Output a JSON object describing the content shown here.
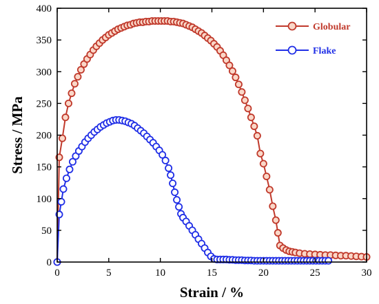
{
  "chart_data": {
    "type": "scatter",
    "title": "",
    "xlabel": "Strain / %",
    "ylabel": "Stress / MPa",
    "xlim": [
      0,
      30
    ],
    "ylim": [
      0,
      400
    ],
    "x_ticks": [
      "0",
      "5",
      "10",
      "15",
      "20",
      "25",
      "30"
    ],
    "y_ticks": [
      "0",
      "50",
      "100",
      "150",
      "200",
      "250",
      "300",
      "350",
      "400"
    ],
    "grid": false,
    "legend_position": "top-right",
    "series": [
      {
        "name": "Globular",
        "color": "#c0392b",
        "fill": "#fad7c8",
        "marker": "circle",
        "line": true,
        "points": [
          [
            0,
            0
          ],
          [
            0.2,
            165
          ],
          [
            0.5,
            195
          ],
          [
            0.8,
            228
          ],
          [
            1.1,
            250
          ],
          [
            1.4,
            266
          ],
          [
            1.7,
            281
          ],
          [
            2.0,
            292
          ],
          [
            2.3,
            303
          ],
          [
            2.6,
            312
          ],
          [
            2.9,
            320
          ],
          [
            3.2,
            327
          ],
          [
            3.5,
            334
          ],
          [
            3.8,
            340
          ],
          [
            4.1,
            345
          ],
          [
            4.4,
            350
          ],
          [
            4.7,
            354
          ],
          [
            5.0,
            358
          ],
          [
            5.3,
            361
          ],
          [
            5.6,
            364
          ],
          [
            5.9,
            367
          ],
          [
            6.2,
            369
          ],
          [
            6.5,
            371
          ],
          [
            6.8,
            373
          ],
          [
            7.1,
            374
          ],
          [
            7.4,
            376
          ],
          [
            7.7,
            377
          ],
          [
            8.0,
            378
          ],
          [
            8.3,
            378
          ],
          [
            8.6,
            379
          ],
          [
            8.9,
            379
          ],
          [
            9.2,
            380
          ],
          [
            9.5,
            380
          ],
          [
            9.8,
            380
          ],
          [
            10.1,
            380
          ],
          [
            10.4,
            380
          ],
          [
            10.7,
            380
          ],
          [
            11.0,
            379
          ],
          [
            11.3,
            379
          ],
          [
            11.6,
            378
          ],
          [
            11.9,
            377
          ],
          [
            12.2,
            376
          ],
          [
            12.5,
            374
          ],
          [
            12.8,
            372
          ],
          [
            13.1,
            370
          ],
          [
            13.4,
            367
          ],
          [
            13.7,
            364
          ],
          [
            14.0,
            361
          ],
          [
            14.3,
            357
          ],
          [
            14.6,
            353
          ],
          [
            14.9,
            349
          ],
          [
            15.2,
            344
          ],
          [
            15.5,
            339
          ],
          [
            15.8,
            333
          ],
          [
            16.1,
            326
          ],
          [
            16.4,
            318
          ],
          [
            16.7,
            310
          ],
          [
            17.0,
            301
          ],
          [
            17.3,
            291
          ],
          [
            17.6,
            280
          ],
          [
            17.9,
            268
          ],
          [
            18.2,
            255
          ],
          [
            18.5,
            242
          ],
          [
            18.8,
            228
          ],
          [
            19.1,
            214
          ],
          [
            19.4,
            199
          ],
          [
            19.7,
            171
          ],
          [
            20.0,
            155
          ],
          [
            20.3,
            135
          ],
          [
            20.6,
            114
          ],
          [
            20.9,
            88
          ],
          [
            21.2,
            66
          ],
          [
            21.4,
            46
          ],
          [
            21.6,
            26
          ],
          [
            21.9,
            22
          ],
          [
            22.2,
            19
          ],
          [
            22.5,
            17
          ],
          [
            22.8,
            16
          ],
          [
            23.1,
            15
          ],
          [
            23.5,
            14
          ],
          [
            24.0,
            13
          ],
          [
            24.5,
            12.5
          ],
          [
            25.0,
            12
          ],
          [
            25.5,
            11.5
          ],
          [
            26.0,
            11
          ],
          [
            26.5,
            11
          ],
          [
            27.0,
            10.5
          ],
          [
            27.5,
            10
          ],
          [
            28.0,
            10
          ],
          [
            28.5,
            9.5
          ],
          [
            29.0,
            9
          ],
          [
            29.5,
            8.5
          ],
          [
            30.0,
            8
          ]
        ]
      },
      {
        "name": "Flake",
        "color": "#1f2ee6",
        "fill": "#ffffff",
        "marker": "circle",
        "line": true,
        "points": [
          [
            0,
            0
          ],
          [
            0.2,
            75
          ],
          [
            0.4,
            95
          ],
          [
            0.6,
            115
          ],
          [
            0.9,
            132
          ],
          [
            1.2,
            146
          ],
          [
            1.5,
            158
          ],
          [
            1.8,
            167
          ],
          [
            2.1,
            175
          ],
          [
            2.4,
            182
          ],
          [
            2.7,
            189
          ],
          [
            3.0,
            195
          ],
          [
            3.3,
            200
          ],
          [
            3.6,
            205
          ],
          [
            3.9,
            209
          ],
          [
            4.2,
            213
          ],
          [
            4.5,
            216
          ],
          [
            4.8,
            219
          ],
          [
            5.1,
            221
          ],
          [
            5.4,
            223
          ],
          [
            5.7,
            224
          ],
          [
            6.0,
            224
          ],
          [
            6.3,
            223
          ],
          [
            6.6,
            222
          ],
          [
            6.9,
            220
          ],
          [
            7.2,
            218
          ],
          [
            7.5,
            215
          ],
          [
            7.8,
            211
          ],
          [
            8.1,
            207
          ],
          [
            8.4,
            203
          ],
          [
            8.7,
            198
          ],
          [
            9.0,
            193
          ],
          [
            9.3,
            188
          ],
          [
            9.6,
            182
          ],
          [
            9.9,
            176
          ],
          [
            10.2,
            169
          ],
          [
            10.5,
            160
          ],
          [
            10.8,
            148
          ],
          [
            11.0,
            137
          ],
          [
            11.2,
            124
          ],
          [
            11.4,
            110
          ],
          [
            11.6,
            98
          ],
          [
            11.8,
            87
          ],
          [
            12.0,
            76
          ],
          [
            12.2,
            70
          ],
          [
            12.5,
            64
          ],
          [
            12.8,
            57
          ],
          [
            13.1,
            50
          ],
          [
            13.4,
            43
          ],
          [
            13.7,
            36
          ],
          [
            14.0,
            29
          ],
          [
            14.3,
            22
          ],
          [
            14.6,
            15
          ],
          [
            14.9,
            9
          ],
          [
            15.2,
            5
          ],
          [
            15.5,
            4
          ],
          [
            15.8,
            4
          ],
          [
            16.1,
            4
          ],
          [
            16.4,
            4
          ],
          [
            16.7,
            3.5
          ],
          [
            17.0,
            3.5
          ],
          [
            17.3,
            3
          ],
          [
            17.6,
            3
          ],
          [
            17.9,
            3
          ],
          [
            18.2,
            2.5
          ],
          [
            18.5,
            2.5
          ],
          [
            18.8,
            2.5
          ],
          [
            19.1,
            2
          ],
          [
            19.4,
            2
          ],
          [
            19.7,
            2
          ],
          [
            20.0,
            2
          ],
          [
            20.3,
            2
          ],
          [
            20.6,
            2
          ],
          [
            20.9,
            2
          ],
          [
            21.2,
            2
          ],
          [
            21.5,
            2
          ],
          [
            21.8,
            2
          ],
          [
            22.1,
            2
          ],
          [
            22.4,
            2
          ],
          [
            22.7,
            2
          ],
          [
            23.0,
            2
          ],
          [
            23.3,
            2
          ],
          [
            23.6,
            2
          ],
          [
            23.9,
            2
          ],
          [
            24.2,
            2
          ],
          [
            24.5,
            2
          ],
          [
            24.8,
            2
          ],
          [
            25.1,
            2
          ],
          [
            25.4,
            2
          ],
          [
            25.7,
            2
          ],
          [
            26.0,
            2
          ],
          [
            26.3,
            2
          ]
        ]
      }
    ]
  }
}
